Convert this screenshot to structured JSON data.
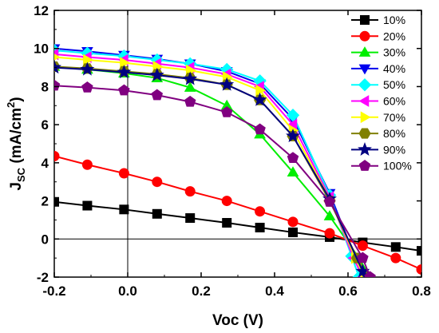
{
  "chart_data": {
    "type": "line",
    "xlabel": "Voc (V)",
    "ylabel_main": "J",
    "ylabel_sub": "SC",
    "ylabel_unit": " (mA/cm",
    "ylabel_exp": "2",
    "ylabel_close": ")",
    "xlim": [
      -0.2,
      0.8
    ],
    "ylim": [
      -2,
      12
    ],
    "x_ticks": [
      -0.2,
      0.0,
      0.2,
      0.4,
      0.6,
      0.8
    ],
    "x_tick_labels": [
      "-0.2",
      "0.0",
      "0.2",
      "0.4",
      "0.6",
      "0.8"
    ],
    "y_ticks": [
      -2,
      0,
      2,
      4,
      6,
      8,
      10,
      12
    ],
    "y_tick_labels": [
      "-2",
      "0",
      "2",
      "4",
      "6",
      "8",
      "10",
      "12"
    ],
    "grid": false,
    "legend_position": "top-right",
    "reference_lines": {
      "x": 0,
      "y": 0
    },
    "series": [
      {
        "name": "10%",
        "color": "#000000",
        "marker": "square",
        "x": [
          -0.2,
          -0.11,
          -0.01,
          0.08,
          0.17,
          0.27,
          0.36,
          0.45,
          0.55,
          0.64,
          0.73,
          0.8
        ],
        "y": [
          1.95,
          1.75,
          1.55,
          1.32,
          1.1,
          0.85,
          0.6,
          0.35,
          0.1,
          -0.18,
          -0.42,
          -0.62
        ]
      },
      {
        "name": "20%",
        "color": "#ff0000",
        "marker": "circle",
        "x": [
          -0.2,
          -0.11,
          -0.01,
          0.08,
          0.17,
          0.27,
          0.36,
          0.45,
          0.55,
          0.64,
          0.73,
          0.8
        ],
        "y": [
          4.35,
          3.9,
          3.45,
          3.0,
          2.5,
          2.0,
          1.45,
          0.9,
          0.3,
          -0.35,
          -1.0,
          -1.6
        ]
      },
      {
        "name": "30%",
        "color": "#00ee00",
        "marker": "triangle-up",
        "x": [
          -0.2,
          -0.11,
          -0.01,
          0.08,
          0.17,
          0.27,
          0.36,
          0.45,
          0.55,
          0.63,
          0.66
        ],
        "y": [
          9.05,
          8.9,
          8.7,
          8.45,
          7.95,
          7.0,
          5.5,
          3.5,
          1.2,
          -1.0,
          -2.0
        ]
      },
      {
        "name": "40%",
        "color": "#0000ee",
        "marker": "triangle-down",
        "x": [
          -0.2,
          -0.11,
          -0.01,
          0.08,
          0.17,
          0.27,
          0.36,
          0.45,
          0.55,
          0.62,
          0.645
        ],
        "y": [
          10.0,
          9.85,
          9.65,
          9.45,
          9.2,
          8.8,
          8.15,
          6.3,
          2.4,
          -1.0,
          -2.0
        ]
      },
      {
        "name": "50%",
        "color": "#00ffff",
        "marker": "diamond",
        "x": [
          -0.2,
          -0.11,
          -0.01,
          0.08,
          0.17,
          0.27,
          0.36,
          0.45,
          0.55,
          0.61,
          0.63
        ],
        "y": [
          9.9,
          9.75,
          9.6,
          9.4,
          9.2,
          8.9,
          8.3,
          6.5,
          2.3,
          -0.9,
          -2.0
        ]
      },
      {
        "name": "60%",
        "color": "#ff00ff",
        "marker": "triangle-left",
        "x": [
          -0.2,
          -0.11,
          -0.01,
          0.08,
          0.17,
          0.27,
          0.36,
          0.45,
          0.55,
          0.615,
          0.64
        ],
        "y": [
          9.7,
          9.55,
          9.4,
          9.2,
          9.0,
          8.65,
          8.0,
          6.0,
          2.2,
          -1.0,
          -2.0
        ]
      },
      {
        "name": "70%",
        "color": "#ffff00",
        "marker": "triangle-right",
        "x": [
          -0.2,
          -0.11,
          -0.01,
          0.08,
          0.17,
          0.27,
          0.36,
          0.45,
          0.55,
          0.62,
          0.645
        ],
        "y": [
          9.55,
          9.4,
          9.25,
          9.05,
          8.85,
          8.5,
          7.8,
          5.7,
          2.1,
          -1.0,
          -2.0
        ]
      },
      {
        "name": "80%",
        "color": "#808000",
        "marker": "hexagon",
        "x": [
          -0.2,
          -0.11,
          -0.01,
          0.08,
          0.17,
          0.27,
          0.36,
          0.45,
          0.55,
          0.625,
          0.655
        ],
        "y": [
          9.05,
          8.95,
          8.8,
          8.65,
          8.45,
          8.1,
          7.3,
          5.4,
          2.0,
          -1.0,
          -2.0
        ]
      },
      {
        "name": "90%",
        "color": "#000080",
        "marker": "star",
        "x": [
          -0.2,
          -0.11,
          -0.01,
          0.08,
          0.17,
          0.27,
          0.36,
          0.45,
          0.55,
          0.64,
          0.655
        ],
        "y": [
          9.0,
          8.9,
          8.75,
          8.6,
          8.4,
          8.1,
          7.3,
          5.4,
          2.1,
          -1.7,
          -2.0
        ]
      },
      {
        "name": "100%",
        "color": "#800080",
        "marker": "pentagon",
        "x": [
          -0.2,
          -0.11,
          -0.01,
          0.08,
          0.17,
          0.27,
          0.36,
          0.45,
          0.55,
          0.64,
          0.66
        ],
        "y": [
          8.05,
          7.95,
          7.8,
          7.55,
          7.2,
          6.65,
          5.75,
          4.25,
          1.95,
          -1.0,
          -2.0
        ]
      }
    ]
  }
}
